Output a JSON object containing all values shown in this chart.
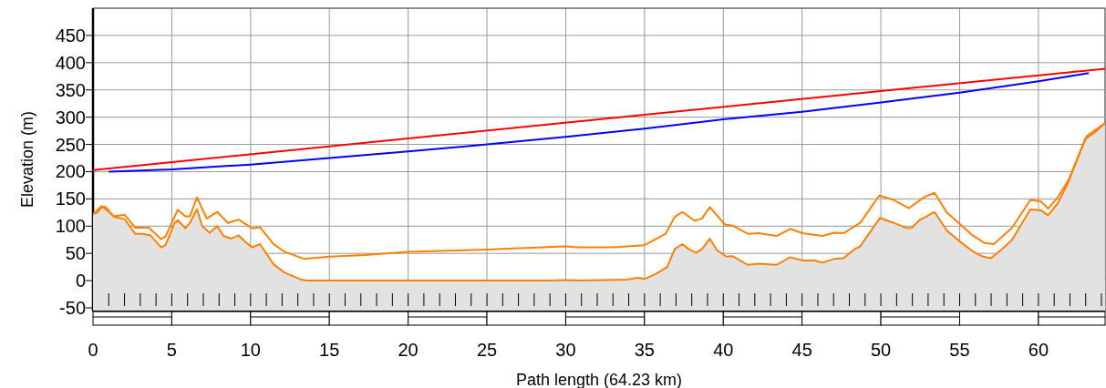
{
  "chart_data": {
    "type": "line",
    "xlabel": "Path length (64.23 km)",
    "ylabel": "Elevation (m)",
    "xlim": [
      0,
      64.23
    ],
    "xticks": [
      0,
      5,
      10,
      15,
      20,
      25,
      30,
      35,
      40,
      45,
      50,
      55,
      60
    ],
    "ylim": [
      -55,
      500
    ],
    "yticks": [
      -50,
      0,
      50,
      100,
      150,
      200,
      250,
      300,
      350,
      400,
      450
    ],
    "grid": true,
    "marker": "none",
    "bands": [
      {
        "axis": "y",
        "from": -55,
        "to": 0,
        "color": "#e2e2e2"
      }
    ],
    "line_style": "solid",
    "series": [
      {
        "type": "area",
        "color": "#ff8000",
        "x": [
          0,
          0.27,
          0.56,
          0.81,
          1.33,
          2.0,
          2.68,
          3.16,
          3.65,
          4.32,
          4.6,
          5.19,
          5.38,
          5.86,
          6.15,
          6.6,
          6.93,
          7.4,
          7.89,
          8.27,
          8.76,
          9.24,
          9.63,
          10.1,
          10.59,
          10.88,
          11.46,
          12.14,
          13.2,
          13.58,
          20,
          29,
          30,
          31,
          33.83,
          34.6,
          35.0,
          35.76,
          36.44,
          36.92,
          37.4,
          37.79,
          38.27,
          38.65,
          39.14,
          39.62,
          40.2,
          40.58,
          41.55,
          42.23,
          43.38,
          44.25,
          45.02,
          45.8,
          46.28,
          47.05,
          47.63,
          48.3,
          48.69,
          49.94,
          50.81,
          51.68,
          51.97,
          52.45,
          53.41,
          54.18,
          55.05,
          55.82,
          56.4,
          56.98,
          57.66,
          58.33,
          59.49,
          60.17,
          60.61,
          61.23,
          61.9,
          62.96,
          63.54,
          64.22
        ],
        "values": [
          122,
          125,
          135,
          135,
          117,
          113,
          86,
          86,
          83,
          61,
          65,
          106,
          111,
          96,
          106,
          131,
          100,
          88,
          100,
          82,
          77,
          83,
          72,
          61,
          67,
          55,
          30,
          15,
          2,
          0,
          0,
          0,
          1,
          0,
          2,
          5,
          3,
          13,
          25,
          58,
          67,
          58,
          51,
          58,
          77,
          55,
          44,
          45,
          29,
          31,
          29,
          43,
          37,
          37,
          33,
          40,
          41,
          57,
          63,
          115,
          106,
          96,
          97,
          111,
          126,
          92,
          71,
          54,
          45,
          41,
          57,
          75,
          131,
          129,
          120,
          142,
          181,
          260,
          271,
          289
        ]
      },
      {
        "color": "#ff8000",
        "x": [
          0,
          0.56,
          1.33,
          2.0,
          2.68,
          3.55,
          4.32,
          4.6,
          5.38,
          5.86,
          6.15,
          6.6,
          7.21,
          7.89,
          8.56,
          9.24,
          10.1,
          10.59,
          11.46,
          12.14,
          13.39,
          14.99,
          17.25,
          19.94,
          24.95,
          29.98,
          30.75,
          33.06,
          35.0,
          36.34,
          36.92,
          37.4,
          38.18,
          38.65,
          39.14,
          40.1,
          40.58,
          41.55,
          42.23,
          43.38,
          44.25,
          45.02,
          46.28,
          47.05,
          47.63,
          48.69,
          49.9,
          50.81,
          51.78,
          52.74,
          53.41,
          54.18,
          55.05,
          55.82,
          56.59,
          57.17,
          58.33,
          59.49,
          60.17,
          60.61,
          61.23,
          61.9,
          63.06,
          63.54,
          64.22
        ],
        "values": [
          122,
          137,
          118,
          121,
          97,
          97,
          76,
          81,
          130,
          118,
          118,
          153,
          114,
          126,
          106,
          112,
          96,
          98,
          67,
          53,
          40,
          44,
          47,
          53,
          57,
          63,
          61,
          61,
          65,
          86,
          117,
          126,
          110,
          114,
          135,
          103,
          101,
          86,
          87,
          82,
          95,
          87,
          82,
          88,
          87,
          106,
          156,
          148,
          133,
          153,
          161,
          125,
          103,
          83,
          69,
          67,
          97,
          148,
          145,
          132,
          153,
          184,
          265,
          275,
          289
        ]
      },
      {
        "color": "#0000ff",
        "x": [
          1,
          5,
          10,
          15,
          20,
          25,
          30,
          35,
          40,
          45,
          50,
          55,
          60,
          63.2
        ],
        "values": [
          200,
          204,
          213,
          225,
          237,
          250,
          264,
          279,
          296,
          310,
          327,
          345,
          366,
          381
        ]
      },
      {
        "color": "#ff0000",
        "x": [
          0,
          64.23
        ],
        "values": [
          203,
          389
        ]
      }
    ]
  }
}
